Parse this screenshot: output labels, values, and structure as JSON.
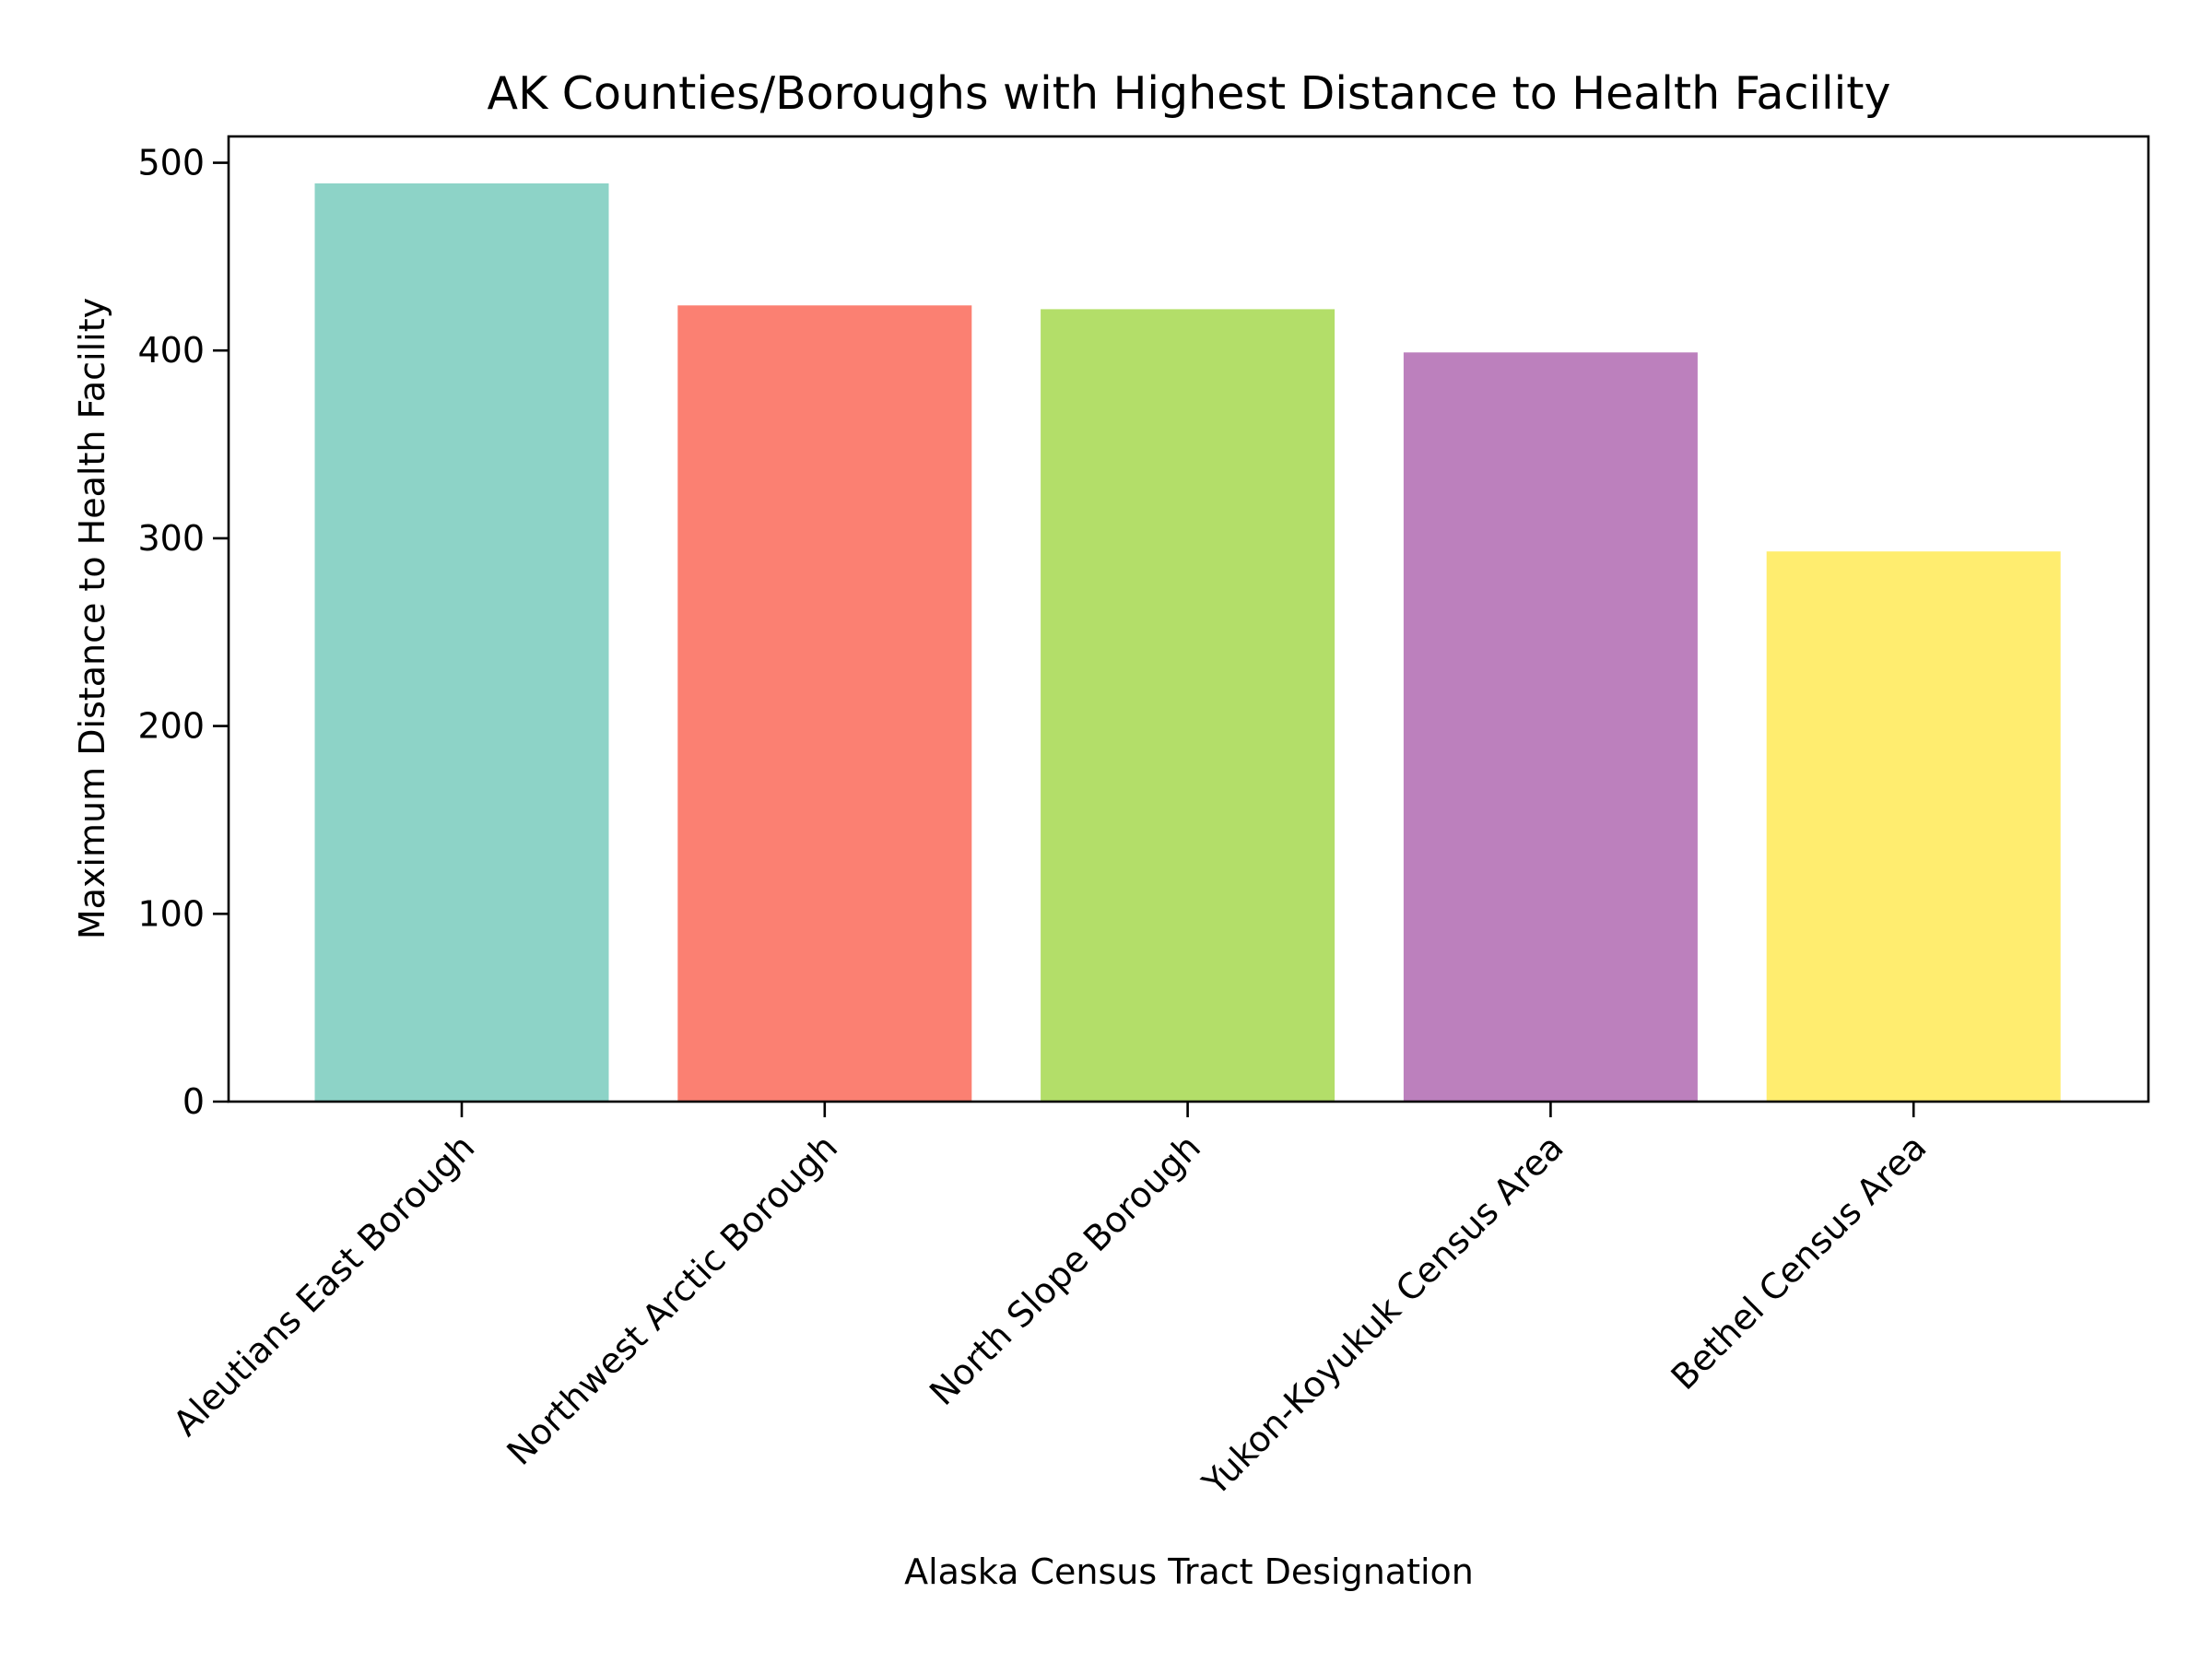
{
  "chart_data": {
    "type": "bar",
    "title": "AK Counties/Boroughs with Highest Distance to Health Facility",
    "xlabel": "Alaska Census Tract Designation",
    "ylabel": "Maximum Distance to Health Facility",
    "categories": [
      "Aleutians East Borough",
      "Northwest Arctic Borough",
      "North Slope Borough",
      "Yukon-Koyukuk Census Area",
      "Bethel Census Area"
    ],
    "values": [
      489,
      424,
      422,
      399,
      293
    ],
    "colors": [
      "#8dd3c7",
      "#fb8072",
      "#b3de69",
      "#bc80bd",
      "#ffed6f"
    ],
    "yticks": [
      "0",
      "100",
      "200",
      "300",
      "400",
      "500"
    ],
    "ylim": [
      0,
      514
    ],
    "grid": false,
    "legend": "none"
  }
}
